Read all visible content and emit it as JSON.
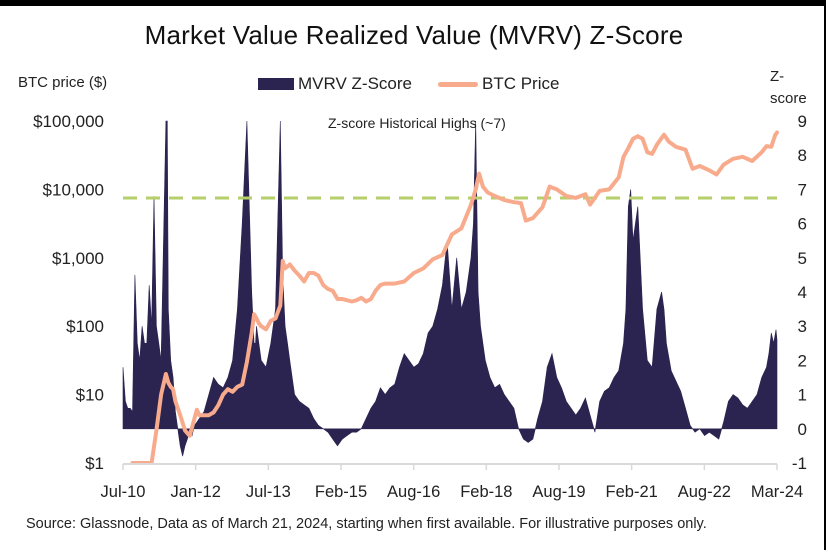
{
  "chart_data": {
    "type": "area+line",
    "title": "Market Value Realized Value (MVRV) Z-Score",
    "ylabel_left": "BTC price ($)",
    "ylabel_right": "Z-score",
    "annotation": "Z-score Historical Highs (~7)",
    "reference_line": {
      "axis": "right",
      "value": 6.75,
      "style": "dashed",
      "color": "#b5cf6b"
    },
    "legend": [
      {
        "name": "MVRV Z-Score",
        "type": "area",
        "color": "#2c2450"
      },
      {
        "name": "BTC Price",
        "type": "line",
        "color": "#f8ab8c"
      }
    ],
    "legend_position": "top-center",
    "x_ticks": [
      "Jul-10",
      "Jan-12",
      "Jul-13",
      "Feb-15",
      "Aug-16",
      "Feb-18",
      "Aug-19",
      "Feb-21",
      "Aug-22",
      "Mar-24"
    ],
    "x_range": [
      2010.5,
      2024.22
    ],
    "y_left": {
      "scale": "log",
      "ticks": [
        "$1",
        "$10",
        "$100",
        "$1,000",
        "$10,000",
        "$100,000"
      ],
      "tick_values": [
        1,
        10,
        100,
        1000,
        10000,
        100000
      ],
      "range": [
        1,
        100000
      ]
    },
    "y_right": {
      "ticks": [
        "-1",
        "0",
        "1",
        "2",
        "3",
        "4",
        "5",
        "6",
        "7",
        "8",
        "9"
      ],
      "tick_values": [
        -1,
        0,
        1,
        2,
        3,
        4,
        5,
        6,
        7,
        8,
        9
      ],
      "range": [
        -1,
        9
      ]
    },
    "grid": false,
    "series": [
      {
        "name": "MVRV Z-Score",
        "axis": "right",
        "x": [
          2010.5,
          2010.55,
          2010.6,
          2010.65,
          2010.7,
          2010.75,
          2010.8,
          2010.85,
          2010.9,
          2010.95,
          2011.0,
          2011.05,
          2011.1,
          2011.15,
          2011.2,
          2011.25,
          2011.3,
          2011.35,
          2011.4,
          2011.43,
          2011.45,
          2011.5,
          2011.55,
          2011.6,
          2011.65,
          2011.7,
          2011.75,
          2011.8,
          2011.85,
          2011.9,
          2011.95,
          2012.0,
          2012.05,
          2012.1,
          2012.2,
          2012.3,
          2012.4,
          2012.5,
          2012.6,
          2012.7,
          2012.8,
          2012.9,
          2013.0,
          2013.1,
          2013.2,
          2013.25,
          2013.28,
          2013.3,
          2013.35,
          2013.4,
          2013.5,
          2013.6,
          2013.7,
          2013.8,
          2013.85,
          2013.9,
          2013.95,
          2014.0,
          2014.05,
          2014.1,
          2014.2,
          2014.3,
          2014.4,
          2014.5,
          2014.6,
          2014.7,
          2014.8,
          2014.9,
          2015.0,
          2015.1,
          2015.2,
          2015.3,
          2015.4,
          2015.5,
          2015.6,
          2015.7,
          2015.8,
          2015.9,
          2016.0,
          2016.1,
          2016.2,
          2016.3,
          2016.4,
          2016.5,
          2016.6,
          2016.7,
          2016.8,
          2016.9,
          2017.0,
          2017.1,
          2017.2,
          2017.3,
          2017.4,
          2017.5,
          2017.6,
          2017.7,
          2017.8,
          2017.85,
          2017.9,
          2017.95,
          2018.0,
          2018.05,
          2018.1,
          2018.2,
          2018.3,
          2018.4,
          2018.5,
          2018.6,
          2018.7,
          2018.8,
          2018.9,
          2019.0,
          2019.1,
          2019.2,
          2019.3,
          2019.4,
          2019.5,
          2019.6,
          2019.7,
          2019.8,
          2019.9,
          2020.0,
          2020.1,
          2020.2,
          2020.3,
          2020.4,
          2020.5,
          2020.6,
          2020.7,
          2020.8,
          2020.9,
          2021.0,
          2021.05,
          2021.1,
          2021.15,
          2021.2,
          2021.3,
          2021.4,
          2021.5,
          2021.6,
          2021.7,
          2021.8,
          2021.85,
          2021.9,
          2022.0,
          2022.1,
          2022.2,
          2022.3,
          2022.4,
          2022.5,
          2022.6,
          2022.7,
          2022.8,
          2022.9,
          2023.0,
          2023.1,
          2023.2,
          2023.3,
          2023.4,
          2023.5,
          2023.6,
          2023.7,
          2023.8,
          2023.9,
          2024.0,
          2024.05,
          2024.1,
          2024.15,
          2024.2,
          2024.22
        ],
        "values": [
          1.8,
          0.8,
          0.6,
          0.6,
          0.5,
          4.5,
          2.5,
          2.0,
          3.0,
          2.5,
          2.5,
          4.2,
          3.0,
          6.8,
          3.0,
          2.5,
          2.0,
          5.5,
          9.0,
          9.0,
          3.5,
          2.0,
          1.5,
          0.5,
          0.0,
          -0.5,
          -0.8,
          -0.5,
          -0.3,
          0.0,
          -0.2,
          0.1,
          0.2,
          0.3,
          0.5,
          1.0,
          1.5,
          1.3,
          1.2,
          1.5,
          2.0,
          3.5,
          6.0,
          9.0,
          4.0,
          2.5,
          2.5,
          3.0,
          2.5,
          2.0,
          1.8,
          2.5,
          3.5,
          9.0,
          4.5,
          3.0,
          2.5,
          2.0,
          1.5,
          1.0,
          0.8,
          0.7,
          0.6,
          0.3,
          0.1,
          0.0,
          -0.1,
          -0.3,
          -0.5,
          -0.3,
          -0.2,
          -0.1,
          -0.1,
          0.0,
          0.3,
          0.6,
          0.8,
          1.2,
          1.0,
          1.2,
          1.3,
          1.8,
          2.2,
          2.0,
          1.8,
          1.9,
          2.2,
          2.8,
          3.0,
          3.5,
          4.2,
          5.5,
          3.5,
          5.0,
          3.5,
          4.0,
          5.0,
          6.0,
          9.0,
          4.0,
          3.0,
          2.5,
          2.0,
          1.5,
          1.2,
          1.3,
          1.0,
          0.8,
          0.6,
          0.0,
          -0.3,
          -0.4,
          -0.3,
          0.3,
          0.8,
          1.8,
          2.2,
          1.5,
          1.2,
          0.8,
          0.6,
          0.4,
          0.6,
          0.9,
          0.4,
          -0.1,
          0.8,
          1.1,
          1.2,
          1.5,
          1.7,
          2.5,
          3.5,
          6.5,
          7.0,
          5.5,
          6.5,
          3.5,
          2.0,
          1.8,
          3.5,
          4.0,
          3.5,
          2.5,
          1.7,
          1.4,
          1.1,
          0.6,
          0.1,
          -0.1,
          0.0,
          -0.2,
          -0.1,
          -0.2,
          -0.3,
          0.2,
          0.8,
          1.0,
          0.9,
          0.7,
          0.6,
          0.8,
          1.0,
          1.5,
          1.8,
          2.2,
          2.8,
          2.5,
          2.9,
          2.6
        ]
      },
      {
        "name": "BTC Price",
        "axis": "left",
        "x": [
          2010.7,
          2010.8,
          2010.9,
          2011.0,
          2011.1,
          2011.2,
          2011.3,
          2011.4,
          2011.45,
          2011.5,
          2011.55,
          2011.6,
          2011.7,
          2011.8,
          2011.9,
          2012.0,
          2012.05,
          2012.1,
          2012.2,
          2012.3,
          2012.4,
          2012.5,
          2012.6,
          2012.7,
          2012.8,
          2012.9,
          2013.0,
          2013.1,
          2013.2,
          2013.25,
          2013.3,
          2013.35,
          2013.4,
          2013.5,
          2013.6,
          2013.7,
          2013.8,
          2013.85,
          2013.9,
          2014.0,
          2014.1,
          2014.2,
          2014.3,
          2014.4,
          2014.5,
          2014.6,
          2014.7,
          2014.8,
          2014.9,
          2015.0,
          2015.1,
          2015.2,
          2015.3,
          2015.4,
          2015.5,
          2015.6,
          2015.7,
          2015.8,
          2015.9,
          2016.0,
          2016.2,
          2016.4,
          2016.6,
          2016.8,
          2017.0,
          2017.2,
          2017.4,
          2017.6,
          2017.8,
          2017.9,
          2017.97,
          2018.05,
          2018.15,
          2018.3,
          2018.5,
          2018.7,
          2018.85,
          2018.95,
          2019.1,
          2019.3,
          2019.45,
          2019.6,
          2019.8,
          2020.0,
          2020.2,
          2020.3,
          2020.5,
          2020.7,
          2020.9,
          2021.0,
          2021.1,
          2021.2,
          2021.3,
          2021.4,
          2021.5,
          2021.6,
          2021.7,
          2021.85,
          2021.95,
          2022.1,
          2022.3,
          2022.45,
          2022.6,
          2022.8,
          2022.95,
          2023.1,
          2023.3,
          2023.5,
          2023.7,
          2023.9,
          2024.0,
          2024.1,
          2024.18,
          2024.22
        ],
        "values": [
          0.07,
          0.2,
          0.3,
          0.5,
          1.0,
          3.0,
          10.0,
          20.0,
          15.0,
          13.0,
          12.0,
          8.0,
          5.0,
          3.0,
          2.5,
          4.5,
          6.0,
          5.0,
          5.0,
          5.0,
          5.5,
          7.0,
          10.0,
          12.0,
          11.0,
          13.0,
          14.0,
          30.0,
          80.0,
          150.0,
          130.0,
          110.0,
          100.0,
          90.0,
          120.0,
          130.0,
          200.0,
          900.0,
          700.0,
          800.0,
          650.0,
          550.0,
          450.0,
          600.0,
          600.0,
          550.0,
          400.0,
          350.0,
          330.0,
          250.0,
          250.0,
          240.0,
          230.0,
          240.0,
          260.0,
          230.0,
          250.0,
          330.0,
          400.0,
          420.0,
          420.0,
          450.0,
          600.0,
          700.0,
          950.0,
          1100.0,
          2200.0,
          2700.0,
          6000.0,
          10000.0,
          17000.0,
          11000.0,
          9000.0,
          8000.0,
          7000.0,
          6500.0,
          6300.0,
          3500.0,
          3800.0,
          5500.0,
          11000.0,
          10000.0,
          8000.0,
          7500.0,
          8500.0,
          6000.0,
          9500.0,
          10000.0,
          15000.0,
          30000.0,
          40000.0,
          55000.0,
          60000.0,
          55000.0,
          35000.0,
          33000.0,
          45000.0,
          63000.0,
          50000.0,
          42000.0,
          38000.0,
          20000.0,
          22000.0,
          19000.0,
          16500.0,
          23000.0,
          28000.0,
          30000.0,
          26000.0,
          35000.0,
          43000.0,
          42000.0,
          62000.0,
          68000.0
        ]
      }
    ]
  },
  "page": {
    "title": "Market Value Realized Value (MVRV) Z-Score",
    "ylabel_left": "BTC price ($)",
    "ylabel_right_line1": "Z-",
    "ylabel_right_line2": "score",
    "legend_zscore": "MVRV Z-Score",
    "legend_price": "BTC Price",
    "annotation": "Z-score Historical Highs (~7)",
    "source": "Source: Glassnode, Data as of March 21, 2024, starting when first available. For illustrative purposes only.",
    "colors": {
      "zscore": "#2c2450",
      "price": "#f8ab8c",
      "reference": "#b5cf6b",
      "axis": "#d9d9d9"
    }
  }
}
